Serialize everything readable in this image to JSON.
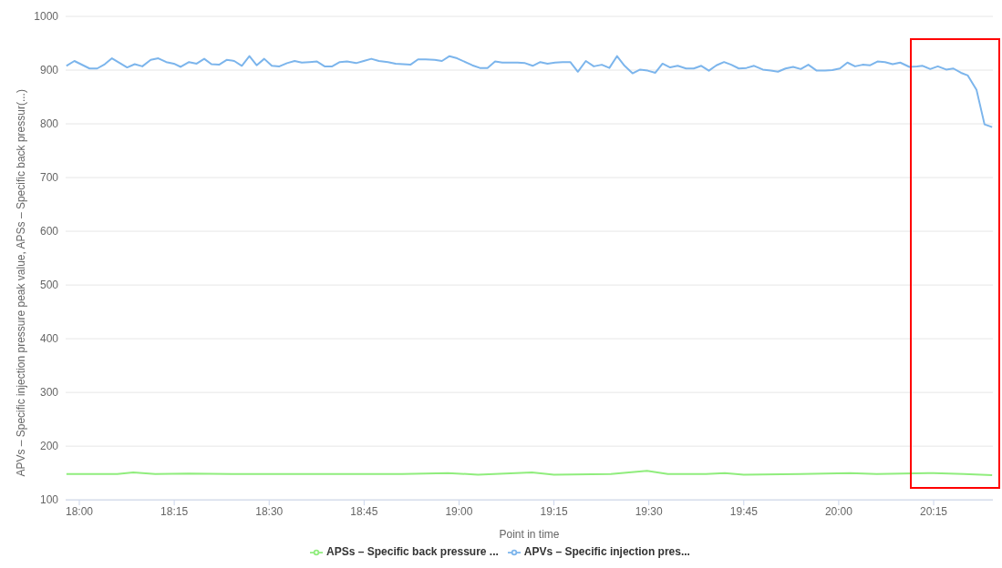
{
  "chart_data": {
    "type": "line",
    "xlabel": "Point in time",
    "ylabel": "APVs – Specific injection pressure peak value, APSs – Specific back pressur(...)",
    "xlim": [
      17.964,
      20.406
    ],
    "xticks": [
      {
        "value": 18,
        "label": "18:00"
      },
      {
        "value": 18.25,
        "label": "18:15"
      },
      {
        "value": 18.5,
        "label": "18:30"
      },
      {
        "value": 18.75,
        "label": "18:45"
      },
      {
        "value": 19,
        "label": "19:00"
      },
      {
        "value": 19.25,
        "label": "19:15"
      },
      {
        "value": 19.5,
        "label": "19:30"
      },
      {
        "value": 19.75,
        "label": "19:45"
      },
      {
        "value": 20,
        "label": "20:00"
      },
      {
        "value": 20.25,
        "label": "20:15"
      }
    ],
    "ylim": [
      100,
      1000
    ],
    "yticks": [
      100,
      200,
      300,
      400,
      500,
      600,
      700,
      800,
      900,
      1000
    ],
    "grid": "y",
    "legend": "bottom",
    "marker": "none",
    "line_style": "solid",
    "series": [
      {
        "name": "APVs – Specific injection pres...",
        "color": "#7cb5ec",
        "x": [
          17.966,
          17.987,
          18.027,
          18.047,
          18.067,
          18.086,
          18.126,
          18.146,
          18.166,
          18.188,
          18.208,
          18.229,
          18.249,
          18.267,
          18.289,
          18.309,
          18.329,
          18.348,
          18.368,
          18.388,
          18.408,
          18.428,
          18.448,
          18.467,
          18.487,
          18.507,
          18.527,
          18.547,
          18.567,
          18.586,
          18.606,
          18.626,
          18.646,
          18.666,
          18.686,
          18.705,
          18.729,
          18.749,
          18.769,
          18.789,
          18.813,
          18.833,
          18.872,
          18.892,
          18.912,
          18.936,
          18.955,
          18.975,
          18.995,
          19.035,
          19.055,
          19.075,
          19.095,
          19.114,
          19.134,
          19.154,
          19.174,
          19.194,
          19.214,
          19.233,
          19.253,
          19.273,
          19.293,
          19.313,
          19.334,
          19.355,
          19.376,
          19.396,
          19.416,
          19.436,
          19.457,
          19.477,
          19.497,
          19.517,
          19.536,
          19.556,
          19.576,
          19.598,
          19.618,
          19.638,
          19.658,
          19.678,
          19.698,
          19.717,
          19.737,
          19.757,
          19.777,
          19.8,
          19.821,
          19.84,
          19.86,
          19.88,
          19.9,
          19.92,
          19.942,
          19.964,
          19.983,
          20.003,
          20.023,
          20.043,
          20.063,
          20.083,
          20.102,
          20.122,
          20.142,
          20.162,
          20.186,
          20.206,
          20.221,
          20.241,
          20.261,
          20.283,
          20.302,
          20.322,
          20.34,
          20.363,
          20.384,
          20.404
        ],
        "values": [
          908,
          917,
          903,
          903,
          911,
          922,
          905,
          911,
          907,
          919,
          922,
          915,
          912,
          906,
          915,
          912,
          921,
          911,
          910,
          919,
          917,
          908,
          926,
          909,
          921,
          908,
          907,
          913,
          917,
          914,
          915,
          916,
          907,
          907,
          915,
          916,
          913,
          917,
          921,
          917,
          915,
          912,
          910,
          920,
          920,
          919,
          917,
          926,
          922,
          909,
          904,
          904,
          916,
          914,
          914,
          914,
          913,
          908,
          915,
          912,
          914,
          915,
          915,
          897,
          917,
          907,
          910,
          904,
          926,
          908,
          894,
          901,
          899,
          895,
          912,
          905,
          908,
          903,
          903,
          908,
          899,
          909,
          915,
          910,
          903,
          904,
          908,
          901,
          899,
          897,
          903,
          906,
          902,
          910,
          899,
          899,
          900,
          903,
          914,
          907,
          910,
          909,
          916,
          915,
          911,
          914,
          906,
          907,
          908,
          902,
          907,
          901,
          903,
          895,
          890,
          863,
          799,
          794
        ]
      },
      {
        "name": "APSs – Specific back pressure ...",
        "color": "#90ed7d",
        "x": [
          17.966,
          18.1,
          18.142,
          18.2,
          18.288,
          18.4,
          18.55,
          18.7,
          18.85,
          18.971,
          19.05,
          19.192,
          19.25,
          19.4,
          19.495,
          19.55,
          19.65,
          19.7,
          19.75,
          19.9,
          20.03,
          20.1,
          20.25,
          20.33,
          20.404
        ],
        "values": [
          148,
          148,
          151,
          148,
          149,
          148,
          148,
          148,
          148,
          150,
          147,
          151,
          147,
          148,
          154,
          148,
          148,
          150,
          147,
          148,
          150,
          148,
          150,
          148,
          146
        ]
      }
    ]
  }
}
